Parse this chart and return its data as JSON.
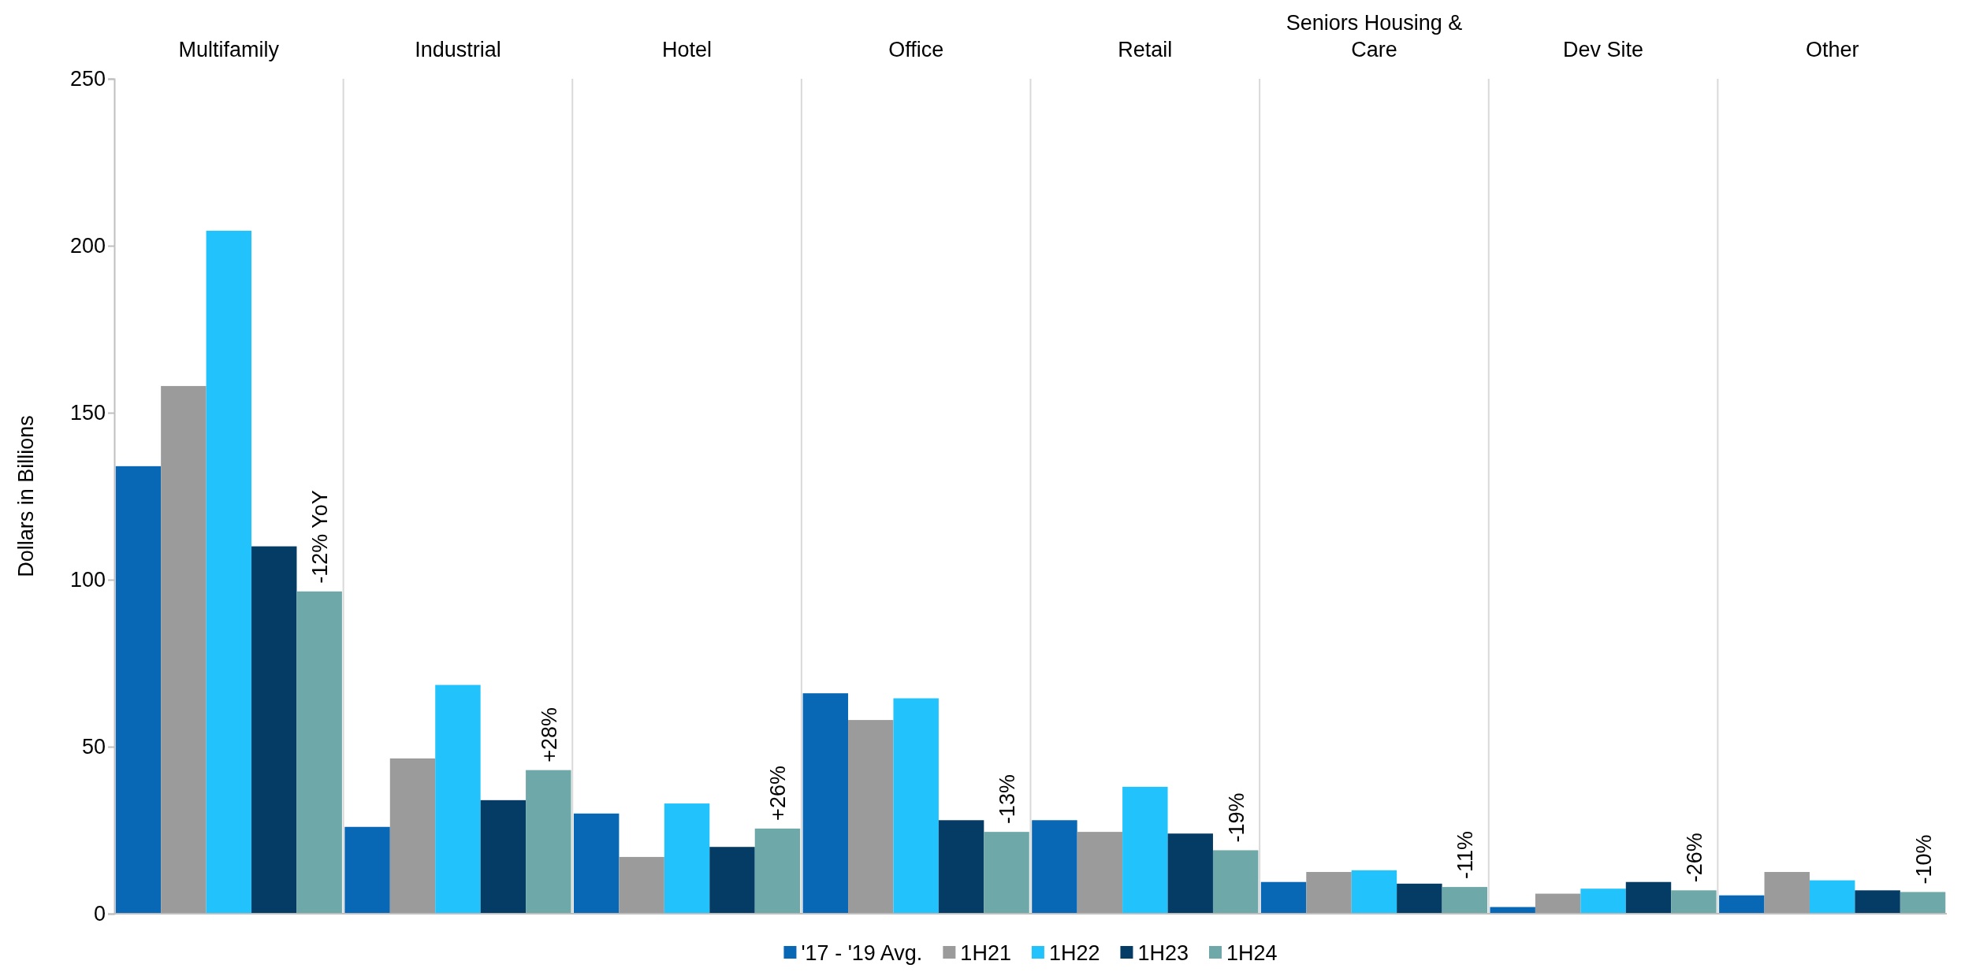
{
  "chart_data": {
    "type": "bar",
    "ylabel": "Dollars in Billions",
    "categories": [
      "Multifamily",
      "Industrial",
      "Hotel",
      "Office",
      "Retail",
      "Seniors Housing & Care",
      "Dev Site",
      "Other"
    ],
    "series": [
      {
        "name": "'17 - '19 Avg.",
        "color": "#0868b5",
        "values": [
          134,
          26,
          30,
          66,
          28,
          9.5,
          2,
          5.5
        ]
      },
      {
        "name": "1H21",
        "color": "#9b9b9b",
        "values": [
          158,
          46.5,
          17,
          58,
          24.5,
          12.5,
          6,
          12.5
        ]
      },
      {
        "name": "1H22",
        "color": "#22c3fd",
        "values": [
          204.5,
          68.5,
          33,
          64.5,
          38,
          13,
          7.5,
          10
        ]
      },
      {
        "name": "1H23",
        "color": "#053c66",
        "values": [
          110,
          34,
          20,
          28,
          24,
          9,
          9.5,
          7
        ]
      },
      {
        "name": "1H24",
        "color": "#6fa8a8",
        "values": [
          96.5,
          43,
          25.5,
          24.5,
          19,
          8,
          7,
          6.5
        ]
      }
    ],
    "ylim": [
      0,
      250
    ],
    "yticks": [
      0,
      50,
      100,
      150,
      200,
      250
    ],
    "grid": "x",
    "legend": "bottom",
    "annotations": [
      "-12% YoY",
      "+28%",
      "+26%",
      "-13%",
      "-19%",
      "-11%",
      "-26%",
      "-10%"
    ]
  }
}
